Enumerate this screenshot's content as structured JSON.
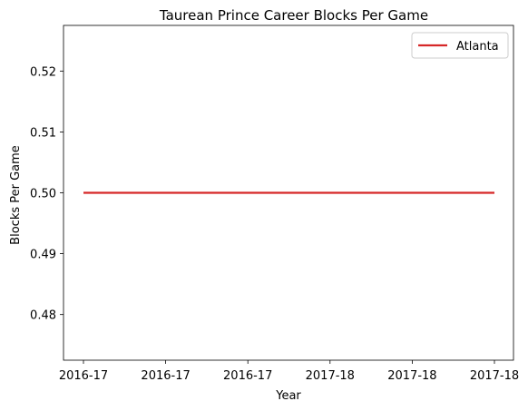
{
  "chart_data": {
    "type": "line",
    "title": "Taurean Prince Career Blocks Per Game",
    "xlabel": "Year",
    "ylabel": "Blocks Per Game",
    "x": [
      "2016-17",
      "2016-17",
      "2016-17",
      "2017-18",
      "2017-18",
      "2017-18"
    ],
    "series": [
      {
        "name": "Atlanta",
        "values": [
          0.5,
          0.5,
          0.5,
          0.5,
          0.5,
          0.5
        ],
        "color": "#d62728"
      }
    ],
    "ylim": [
      0.4725,
      0.5275
    ],
    "yticks": [
      0.48,
      0.49,
      0.5,
      0.51,
      0.52
    ],
    "ytick_labels": [
      "0.48",
      "0.49",
      "0.50",
      "0.51",
      "0.52"
    ],
    "grid": false,
    "legend_position": "top-right"
  }
}
